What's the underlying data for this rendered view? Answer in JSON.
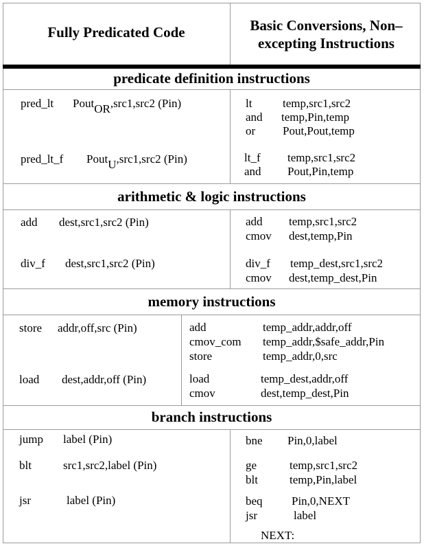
{
  "headers": {
    "left": "Fully Predicated Code",
    "right": "Basic Conversions, Non– excepting Instructions"
  },
  "sections": {
    "predicate": "predicate definition instructions",
    "arith": "arithmetic & logic instructions",
    "memory": "memory instructions",
    "branch": "branch instructions"
  },
  "pred": {
    "r1": {
      "op": "pred_lt",
      "pout": "Pout",
      "sub": "OR",
      "args": ",src1,src2 (Pin)"
    },
    "r1_conv": [
      {
        "op": "lt",
        "args": "temp,src1,src2"
      },
      {
        "op": "and",
        "args": "temp,Pin,temp"
      },
      {
        "op": "or",
        "args": "Pout,Pout,temp"
      }
    ],
    "r2": {
      "op": "pred_lt_f",
      "pout": "Pout",
      "sub": "U",
      "args": ",src1,src2 (Pin)"
    },
    "r2_conv": [
      {
        "op": "lt_f",
        "args": "temp,src1,src2"
      },
      {
        "op": "and",
        "args": "Pout,Pin,temp"
      }
    ]
  },
  "arith": {
    "r1": {
      "op": "add",
      "args": "dest,src1,src2 (Pin)"
    },
    "r1_conv": [
      {
        "op": "add",
        "args": "temp,src1,src2"
      },
      {
        "op": "cmov",
        "args": "dest,temp,Pin"
      }
    ],
    "r2": {
      "op": "div_f",
      "args": "dest,src1,src2 (Pin)"
    },
    "r2_conv": [
      {
        "op": "div_f",
        "args": "temp_dest,src1,src2"
      },
      {
        "op": "cmov",
        "args": "dest,temp_dest,Pin"
      }
    ]
  },
  "memory": {
    "r1": {
      "op": "store",
      "args": "addr,off,src (Pin)"
    },
    "r1_conv": [
      {
        "op": "add",
        "args": "temp_addr,addr,off"
      },
      {
        "op": "cmov_com",
        "args": "temp_addr,$safe_addr,Pin"
      },
      {
        "op": "store",
        "args": "temp_addr,0,src"
      }
    ],
    "r2": {
      "op": "load",
      "args": "dest,addr,off (Pin)"
    },
    "r2_conv": [
      {
        "op": "load",
        "args": "temp_dest,addr,off"
      },
      {
        "op": "cmov",
        "args": "dest,temp_dest,Pin"
      }
    ]
  },
  "branch": {
    "r1": {
      "op": "jump",
      "args": "label (Pin)"
    },
    "r1_conv": [
      {
        "op": "bne",
        "args": "Pin,0,label"
      }
    ],
    "r2": {
      "op": "blt",
      "args": "src1,src2,label (Pin)"
    },
    "r2_conv": [
      {
        "op": "ge",
        "args": "temp,src1,src2"
      },
      {
        "op": "blt",
        "args": "temp,Pin,label"
      }
    ],
    "r3": {
      "op": "jsr",
      "args": "label (Pin)"
    },
    "r3_conv": [
      {
        "op": "beq",
        "args": "Pin,0,NEXT"
      },
      {
        "op": "jsr",
        "args": "label"
      }
    ],
    "next_label": "NEXT:"
  }
}
